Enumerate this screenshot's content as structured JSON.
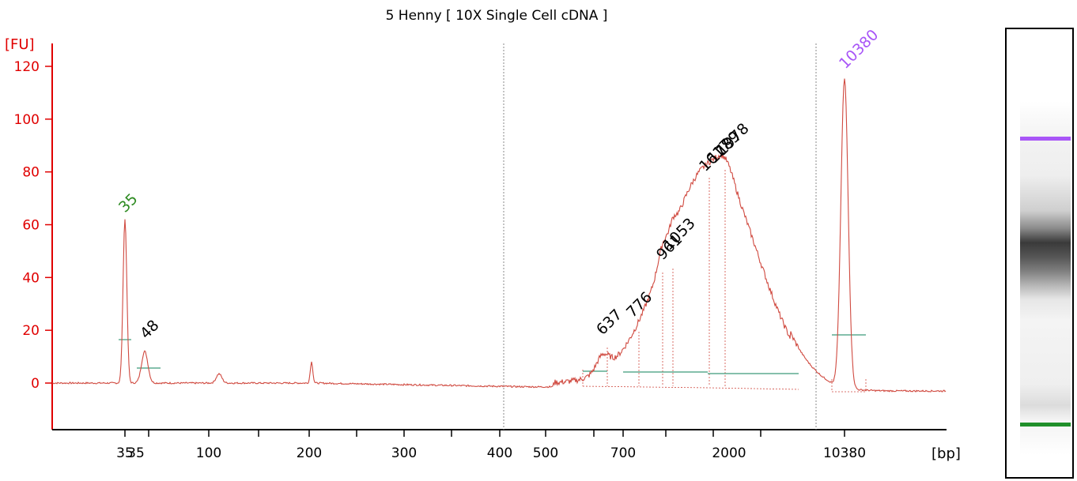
{
  "chart_data": {
    "type": "line",
    "title": "5 Henny  [ 10X Single Cell cDNA ]",
    "ylabel": "[FU]",
    "xlabel": "[bp]",
    "ylim": [
      -18,
      130
    ],
    "y_ticks": [
      0,
      20,
      40,
      60,
      80,
      100,
      120
    ],
    "x_tick_labels": [
      "35",
      "100",
      "200",
      "300",
      "400",
      "500",
      "700",
      "2000",
      "10380"
    ],
    "lower_marker": {
      "label": "35",
      "size_bp": 35,
      "height_fu": 62,
      "color": "#2e8b22"
    },
    "upper_marker": {
      "label": "10380",
      "size_bp": 10380,
      "height_fu": 116,
      "color": "#a855f7"
    },
    "peaks": [
      {
        "label": "48",
        "size_bp": 48,
        "height_fu": 12
      },
      {
        "label": "637",
        "size_bp": 637,
        "height_fu": 16
      },
      {
        "label": "776",
        "size_bp": 776,
        "height_fu": 20
      },
      {
        "label": "961",
        "size_bp": 961,
        "height_fu": 43
      },
      {
        "label": "1053",
        "size_bp": 1053,
        "height_fu": 45
      },
      {
        "label": "1617",
        "size_bp": 1617,
        "height_fu": 80
      },
      {
        "label": "1789",
        "size_bp": 1789,
        "height_fu": 85
      },
      {
        "label": "1978",
        "size_bp": 1978,
        "height_fu": 87
      }
    ],
    "colors": {
      "trace": "#d04a40",
      "axis": "#e00000",
      "baseline": "#3c9b7a",
      "gel_band_upper": "#a855f7",
      "gel_band_lower": "#1f8f2a"
    }
  }
}
